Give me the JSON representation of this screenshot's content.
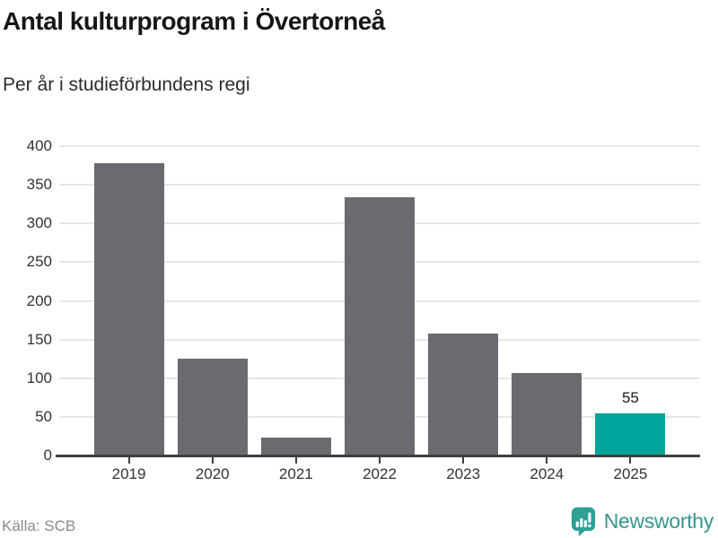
{
  "header": {
    "title": "Antal kulturprogram i Övertorneå",
    "subtitle": "Per år i studieförbundens regi"
  },
  "chart_data": {
    "type": "bar",
    "categories": [
      "2019",
      "2020",
      "2021",
      "2022",
      "2023",
      "2024",
      "2025"
    ],
    "values": [
      378,
      125,
      23,
      334,
      158,
      107,
      55
    ],
    "title": "Antal kulturprogram i Övertorneå",
    "subtitle": "Per år i studieförbundens regi",
    "xlabel": "",
    "ylabel": "",
    "ylim": [
      0,
      400
    ],
    "yticks": [
      0,
      50,
      100,
      150,
      200,
      250,
      300,
      350,
      400
    ],
    "grid": true,
    "legend": false,
    "highlight_index": 6,
    "highlight_value_label": "55",
    "colors": {
      "bar": "#6c6a70",
      "highlight": "#00a69c",
      "grid": "#e6e6e6",
      "axis": "#3f3f3f",
      "tick_label": "#333333"
    }
  },
  "footer": {
    "source_label": "Källa: SCB",
    "brand_name": "Newsworthy",
    "brand_color": "#37968e",
    "logo_icon": "bar-chart-speech-bubble"
  }
}
